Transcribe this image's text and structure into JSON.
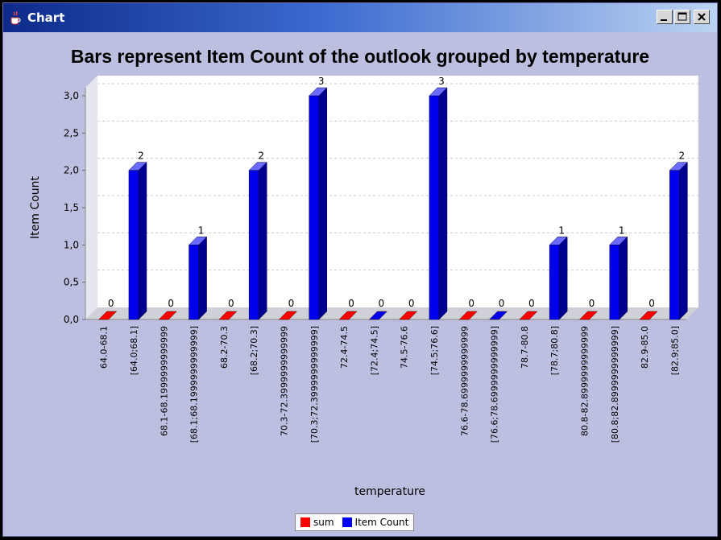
{
  "window": {
    "title": "Chart"
  },
  "chart_data": {
    "type": "bar",
    "title": "Bars represent Item Count of the outlook grouped by temperature",
    "xlabel": "temperature",
    "ylabel": "Item Count",
    "ylim": [
      0,
      3.0
    ],
    "yticks": [
      "0,0",
      "0,5",
      "1,0",
      "1,5",
      "2,0",
      "2,5",
      "3,0"
    ],
    "grid": true,
    "legend_position": "bottom",
    "categories": [
      "64.0-68.1",
      "[64.0;68.1]",
      "68.1-68.1999999999999",
      "[68.1;68.1999999999999]",
      "68.2-70.3",
      "[68.2;70.3]",
      "70.3-72.3999999999999",
      "[70.3;72.3999999999999]",
      "72.4-74.5",
      "[72.4;74.5]",
      "74.5-76.6",
      "[74.5;76.6]",
      "76.6-78.6999999999999",
      "[76.6;78.6999999999999]",
      "78.7-80.8",
      "[78.7;80.8]",
      "80.8-82.8999999999999",
      "[80.8;82.8999999999999]",
      "82.9-85.0",
      "[82.9;85.0]"
    ],
    "series": [
      {
        "name": "sum",
        "color": "#ff0000",
        "values": [
          0,
          null,
          0,
          null,
          0,
          null,
          0,
          null,
          0,
          null,
          0,
          null,
          0,
          null,
          0,
          null,
          0,
          null,
          0,
          null
        ]
      },
      {
        "name": "Item Count",
        "color": "#0000ff",
        "values": [
          null,
          2,
          null,
          1,
          null,
          2,
          null,
          3,
          null,
          0,
          null,
          3,
          null,
          0,
          null,
          1,
          null,
          1,
          null,
          2
        ]
      }
    ],
    "data_labels": [
      "0",
      "2",
      "0",
      "1",
      "0",
      "2",
      "0",
      "3",
      "0",
      "0",
      "0",
      "3",
      "0",
      "0",
      "0",
      "1",
      "0",
      "1",
      "0",
      "2"
    ]
  }
}
